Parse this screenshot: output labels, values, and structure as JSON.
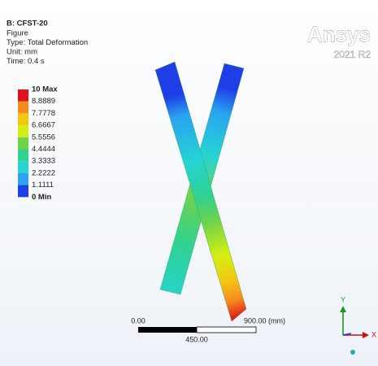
{
  "header": {
    "title": "B: CFST-20",
    "lines": [
      "Figure",
      "Type: Total Deformation",
      "Unit: mm",
      "Time: 0.4 s"
    ]
  },
  "brand": {
    "name": "Ansys",
    "version": "2021 R2"
  },
  "legend": {
    "labels": [
      "10 Max",
      "8.8889",
      "7.7778",
      "6.6667",
      "5.5556",
      "4.4444",
      "3.3333",
      "2.2222",
      "1.1111",
      "0 Min"
    ],
    "colors": [
      "#e0121b",
      "#f58a1f",
      "#f2c811",
      "#d4ee12",
      "#6fd34a",
      "#31d18f",
      "#25d4d4",
      "#2aa3f0",
      "#1f3fe6"
    ]
  },
  "scale_bar": {
    "left": "0.00",
    "right": "900.00 (mm)",
    "middle": "450.00"
  },
  "triad": {
    "y": "Y",
    "x": "X"
  }
}
